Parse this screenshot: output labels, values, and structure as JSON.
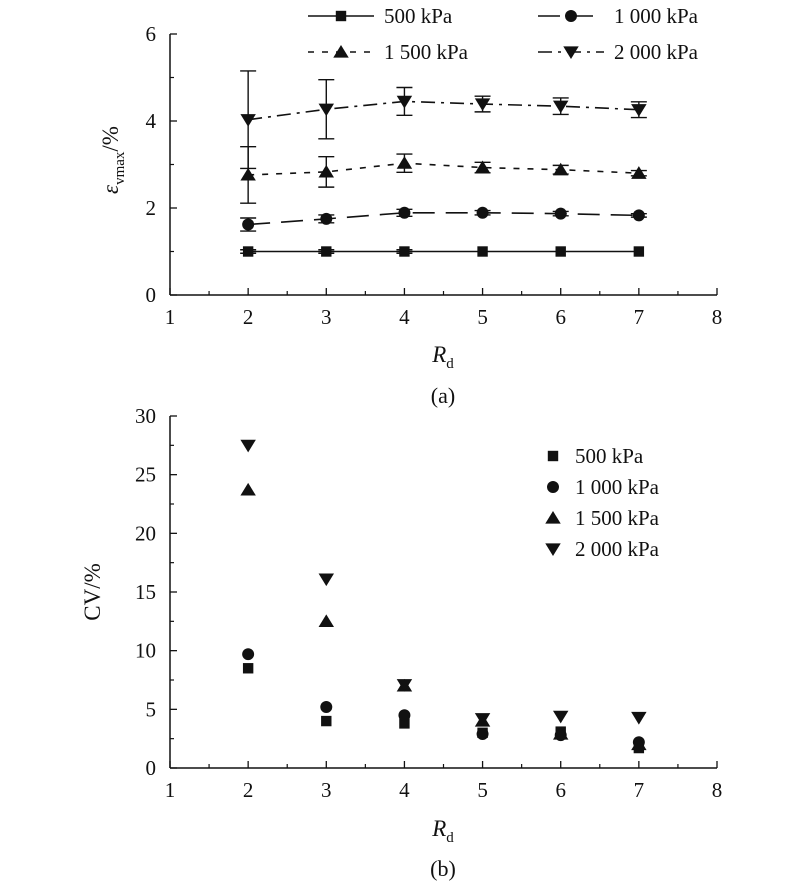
{
  "chart_data": [
    {
      "panel_label": "(a)",
      "type": "line",
      "xlabel": "R",
      "xlabel_sub": "d",
      "ylabel": "ε",
      "ylabel_sub": "vmax",
      "ylabel_suffix": "/%",
      "xlim": [
        1,
        8
      ],
      "ylim": [
        0,
        6
      ],
      "xticks": [
        1,
        2,
        3,
        4,
        5,
        6,
        7,
        8
      ],
      "yticks": [
        0,
        2,
        4,
        6
      ],
      "grid": false,
      "legend_position": "top, two columns",
      "x": [
        2,
        3,
        4,
        5,
        6,
        7
      ],
      "series": [
        {
          "name": "500 kPa",
          "marker": "square",
          "dash": "solid",
          "values": [
            1.0,
            1.0,
            1.0,
            1.0,
            1.0,
            1.0
          ],
          "errors": [
            0.04,
            0.04,
            0.04,
            0.03,
            0.03,
            0.02
          ]
        },
        {
          "name": "1 000 kPa",
          "marker": "circle",
          "dash": "long-dash",
          "values": [
            1.62,
            1.75,
            1.89,
            1.89,
            1.87,
            1.83
          ],
          "errors": [
            0.15,
            0.09,
            0.08,
            0.05,
            0.05,
            0.04
          ]
        },
        {
          "name": "1 500 kPa",
          "marker": "triangle-up",
          "dash": "short-dash",
          "values": [
            2.76,
            2.83,
            3.03,
            2.93,
            2.88,
            2.8
          ],
          "errors": [
            0.65,
            0.35,
            0.21,
            0.12,
            0.1,
            0.06
          ]
        },
        {
          "name": "2 000 kPa",
          "marker": "triangle-down",
          "dash": "dash-dot",
          "values": [
            4.03,
            4.27,
            4.45,
            4.39,
            4.34,
            4.26
          ],
          "errors": [
            1.12,
            0.68,
            0.32,
            0.18,
            0.19,
            0.18
          ]
        }
      ]
    },
    {
      "panel_label": "(b)",
      "type": "scatter",
      "xlabel": "R",
      "xlabel_sub": "d",
      "ylabel": "CV/%",
      "xlim": [
        1,
        8
      ],
      "ylim": [
        0,
        30
      ],
      "xticks": [
        1,
        2,
        3,
        4,
        5,
        6,
        7,
        8
      ],
      "yticks": [
        0,
        5,
        10,
        15,
        20,
        25,
        30
      ],
      "grid": false,
      "legend_position": "top-right",
      "x": [
        2,
        3,
        4,
        5,
        6,
        7
      ],
      "series": [
        {
          "name": "500 kPa",
          "marker": "square",
          "values": [
            8.5,
            4.0,
            3.8,
            3.0,
            3.1,
            1.7
          ]
        },
        {
          "name": "1 000 kPa",
          "marker": "circle",
          "values": [
            9.7,
            5.2,
            4.5,
            2.9,
            2.8,
            2.2
          ]
        },
        {
          "name": "1 500 kPa",
          "marker": "triangle-up",
          "values": [
            23.7,
            12.5,
            7.0,
            4.0,
            2.9,
            2.0
          ]
        },
        {
          "name": "2 000 kPa",
          "marker": "triangle-down",
          "values": [
            27.5,
            16.1,
            7.1,
            4.2,
            4.4,
            4.3
          ]
        }
      ]
    }
  ]
}
